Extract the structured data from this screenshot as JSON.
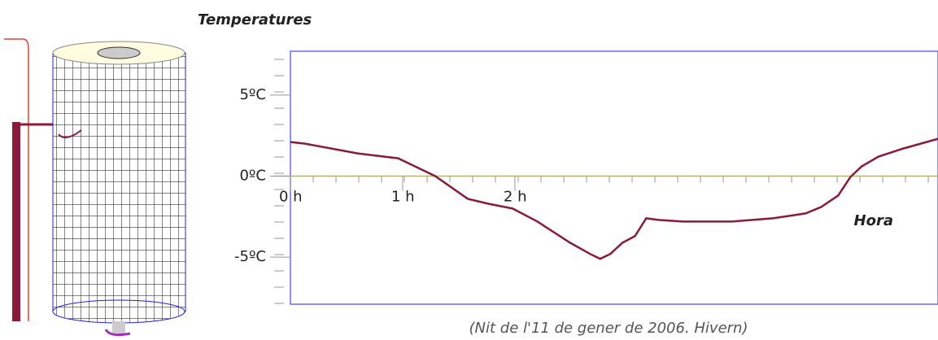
{
  "chart_data": {
    "type": "line",
    "title": "Temperatures",
    "xlabel": "Hora",
    "caption": "(Nit de l'11 de gener de 2006. Hivern)",
    "x": [
      0,
      0.13,
      0.6,
      0.96,
      1.29,
      1.58,
      1.76,
      1.98,
      2.2,
      2.49,
      2.67,
      2.76,
      2.85,
      2.96,
      3.07,
      3.17,
      3.28,
      3.5,
      3.93,
      4.3,
      4.59,
      4.73,
      4.88,
      4.99,
      5.09,
      5.24,
      5.46,
      5.77
    ],
    "series": [
      {
        "color": "#8b1a3a",
        "values": [
          2.1,
          2.0,
          1.4,
          1.1,
          0,
          -1.4,
          -1.7,
          -2.0,
          -2.8,
          -4.1,
          -4.8,
          -5.1,
          -4.8,
          -4.1,
          -3.7,
          -2.6,
          -2.7,
          -2.8,
          -2.8,
          -2.6,
          -2.3,
          -1.9,
          -1.2,
          -0.05,
          0.6,
          1.2,
          1.7,
          2.3
        ]
      }
    ],
    "xlim": [
      0,
      5.77
    ],
    "ylim": [
      -7.9,
      7.7
    ],
    "xticks": [
      {
        "value": 0,
        "label": "0 h"
      },
      {
        "value": 1,
        "label": "1 h"
      },
      {
        "value": 2,
        "label": "2 h"
      }
    ],
    "yticks": [
      {
        "value": 5,
        "label": "5ºC"
      },
      {
        "value": 0,
        "label": "0ºC"
      },
      {
        "value": -5,
        "label": "-5ºC"
      }
    ],
    "frame_color": "#6a6aff",
    "zero_line_color": "#b5b56a"
  }
}
